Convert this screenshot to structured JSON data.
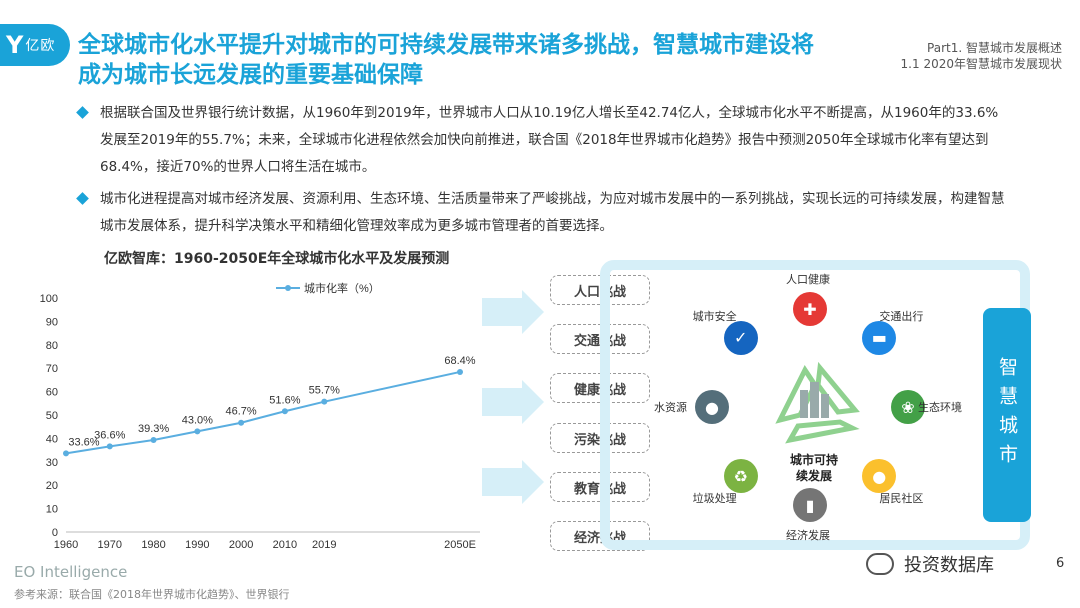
{
  "logo": {
    "mark": "Y",
    "text": "亿欧"
  },
  "title": "全球城市化水平提升对城市的可持续发展带来诸多挑战，智慧城市建设将成为城市长远发展的重要基础保障",
  "breadcrumb": {
    "part": "Part1. 智慧城市发展概述",
    "section": "1.1 2020年智慧城市发展现状"
  },
  "bullets": [
    "根据联合国及世界银行统计数据，从1960年到2019年，世界城市人口从10.19亿人增长至42.74亿人，全球城市化水平不断提高，从1960年的33.6%发展至2019年的55.7%；未来，全球城市化进程依然会加快向前推进，联合国《2018年世界城市化趋势》报告中预测2050年全球城市化率有望达到68.4%，接近70%的世界人口将生活在城市。",
    "城市化进程提高对城市经济发展、资源利用、生态环境、生活质量带来了严峻挑战，为应对城市发展中的一系列挑战，实现长远的可持续发展，构建智慧城市发展体系，提升科学决策水平和精细化管理效率成为更多城市管理者的首要选择。"
  ],
  "chart_title": "亿欧智库：1960-2050E年全球城市化水平及发展预测",
  "chart_data": {
    "type": "line",
    "categories": [
      "1960",
      "1970",
      "1980",
      "1990",
      "2000",
      "2010",
      "2019",
      "2050E"
    ],
    "series": [
      {
        "name": "城市化率（%）",
        "values": [
          33.6,
          36.6,
          39.3,
          43.0,
          46.7,
          51.6,
          55.7,
          68.4
        ]
      }
    ],
    "data_labels": [
      "33.6%",
      "36.6%",
      "39.3%",
      "43.0%",
      "46.7%",
      "51.6%",
      "55.7%",
      "68.4%"
    ],
    "yticks": [
      "0",
      "10",
      "20",
      "30",
      "40",
      "50",
      "60",
      "70",
      "80",
      "90",
      "100"
    ],
    "ylim": [
      0,
      100
    ],
    "color": "#5aaee0",
    "legend": "top"
  },
  "challenges": [
    "人口挑战",
    "交通挑战",
    "健康挑战",
    "污染挑战",
    "教育挑战",
    "经济挑战"
  ],
  "wheel": {
    "center": "城市可持续发展",
    "center_line1": "城市可持",
    "center_line2": "续发展",
    "items": [
      {
        "label": "人口健康",
        "icon": "medical-kit-icon",
        "color": "#e53935",
        "glyph": "✚"
      },
      {
        "label": "交通出行",
        "icon": "car-icon",
        "color": "#1e88e5",
        "glyph": "▬"
      },
      {
        "label": "生态环境",
        "icon": "plant-icon",
        "color": "#43a047",
        "glyph": "❀"
      },
      {
        "label": "居民社区",
        "icon": "people-icon",
        "color": "#fbc02d",
        "glyph": "●"
      },
      {
        "label": "经济发展",
        "icon": "building-icon",
        "color": "#757575",
        "glyph": "▮"
      },
      {
        "label": "垃圾处理",
        "icon": "trash-can-icon",
        "color": "#7cb342",
        "glyph": "♻"
      },
      {
        "label": "水资源",
        "icon": "water-drop-icon",
        "color": "#546e7a",
        "glyph": "●"
      },
      {
        "label": "城市安全",
        "icon": "shield-icon",
        "color": "#1565c0",
        "glyph": "✓"
      }
    ]
  },
  "smart_city": "智慧城市",
  "footer": {
    "brand": "EO Intelligence",
    "source": "参考来源：联合国《2018年世界城市化趋势》、世界银行",
    "wechat": "投资数据库",
    "page": "6"
  }
}
